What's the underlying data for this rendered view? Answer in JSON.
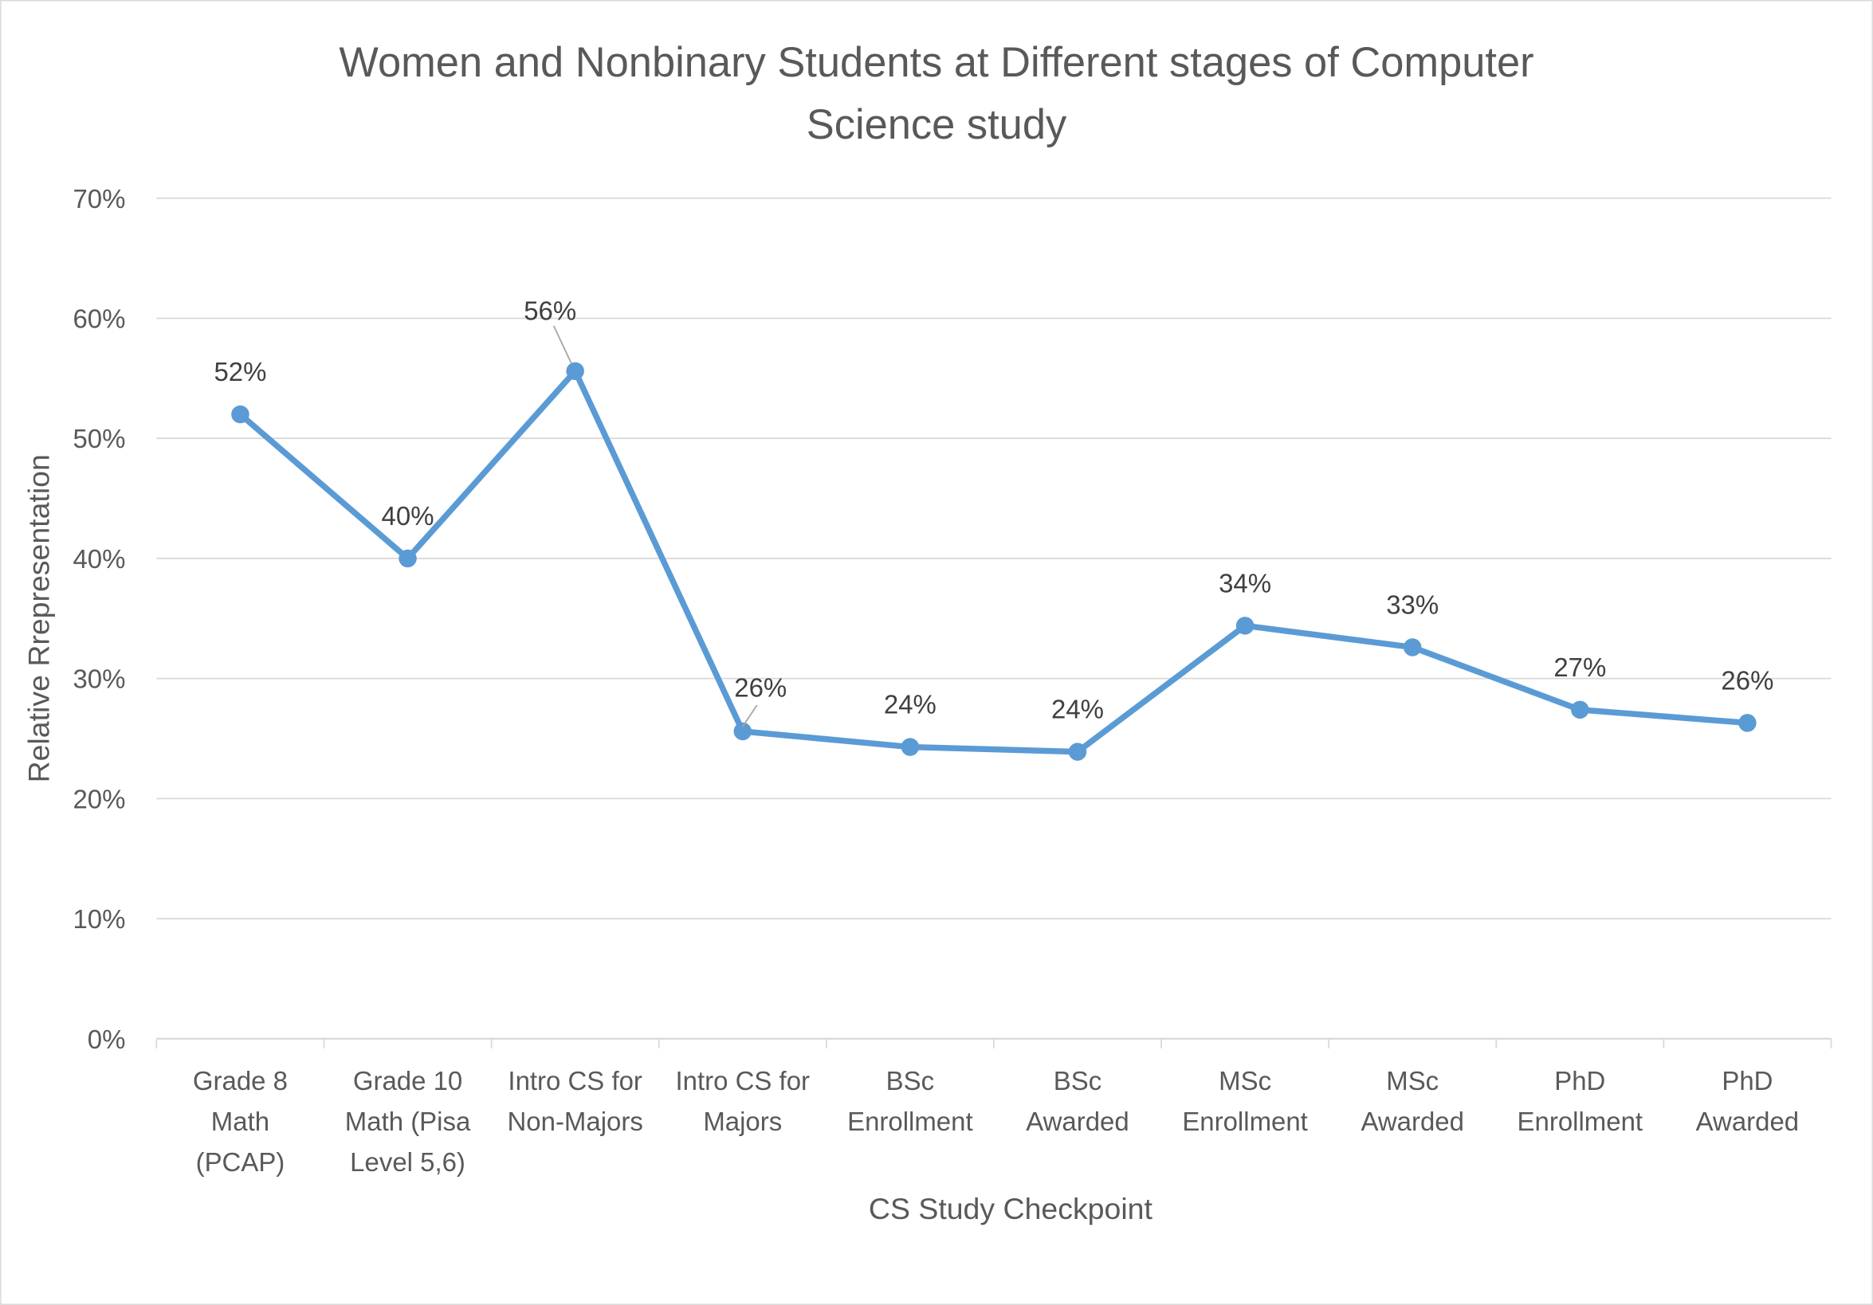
{
  "chart_data": {
    "type": "line",
    "title": "Women and Nonbinary Students at Different stages of Computer Science study",
    "xlabel": "CS Study Checkpoint",
    "ylabel": "Relative Rrepresentation",
    "categories": [
      "Grade 8\nMath\n(PCAP)",
      "Grade 10\nMath (Pisa\nLevel 5,6)",
      "Intro CS for\nNon-Majors",
      "Intro CS for\nMajors",
      "BSc\nEnrollment",
      "BSc\nAwarded",
      "MSc\nEnrollment",
      "MSc\nAwarded",
      "PhD\nEnrollment",
      "PhD\nAwarded"
    ],
    "values": [
      52,
      40,
      55.6,
      25.6,
      24.3,
      23.9,
      34.4,
      32.6,
      27.4,
      26.3
    ],
    "data_labels": [
      "52%",
      "40%",
      "56%",
      "26%",
      "24%",
      "24%",
      "34%",
      "33%",
      "27%",
      "26%"
    ],
    "ylim": [
      0,
      70
    ],
    "yticks": [
      "0%",
      "10%",
      "20%",
      "30%",
      "40%",
      "50%",
      "60%",
      "70%"
    ],
    "grid": true,
    "legend": "none",
    "line_color": "#5B9BD5"
  }
}
